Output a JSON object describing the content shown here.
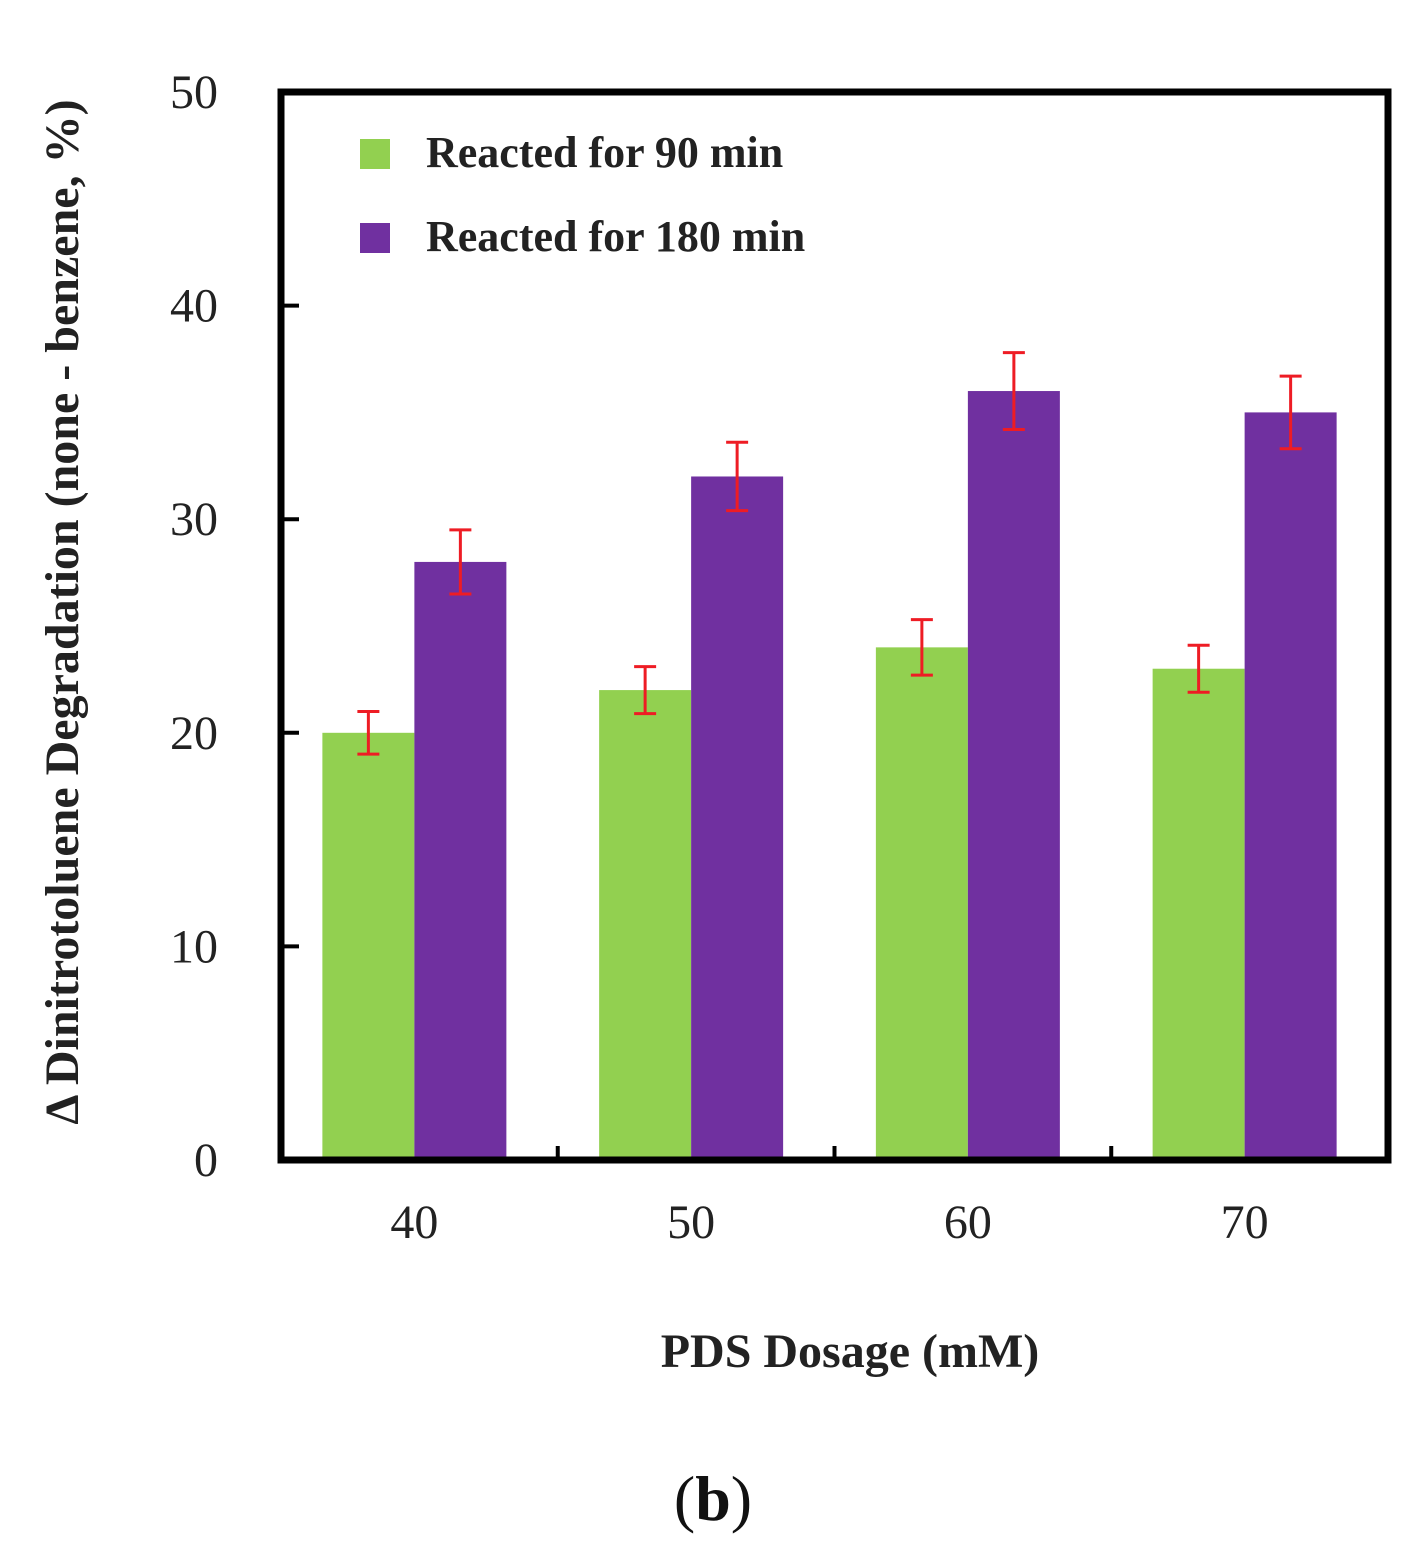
{
  "chart_data": {
    "type": "bar",
    "title": "",
    "xlabel": "PDS Dosage (mM)",
    "ylabel": "Δ Dinitrotoluene Degradation (none - benzene, %)",
    "categories": [
      "40",
      "50",
      "60",
      "70"
    ],
    "ylim": [
      0,
      50
    ],
    "yticks": [
      "0",
      "10",
      "20",
      "30",
      "40",
      "50"
    ],
    "series": [
      {
        "name": "Reacted for 90 min",
        "color": "#92d050",
        "values": [
          20,
          22,
          24,
          23
        ],
        "errors": [
          1.0,
          1.1,
          1.3,
          1.1
        ]
      },
      {
        "name": "Reacted for 180 min",
        "color": "#7030a0",
        "values": [
          28,
          32,
          36,
          35
        ],
        "errors": [
          1.5,
          1.6,
          1.8,
          1.7
        ]
      }
    ],
    "error_bar_color": "#ee1c24",
    "legend_position": "top-left"
  },
  "panel_label": {
    "open": "(",
    "letter": "b",
    "close": ")"
  }
}
